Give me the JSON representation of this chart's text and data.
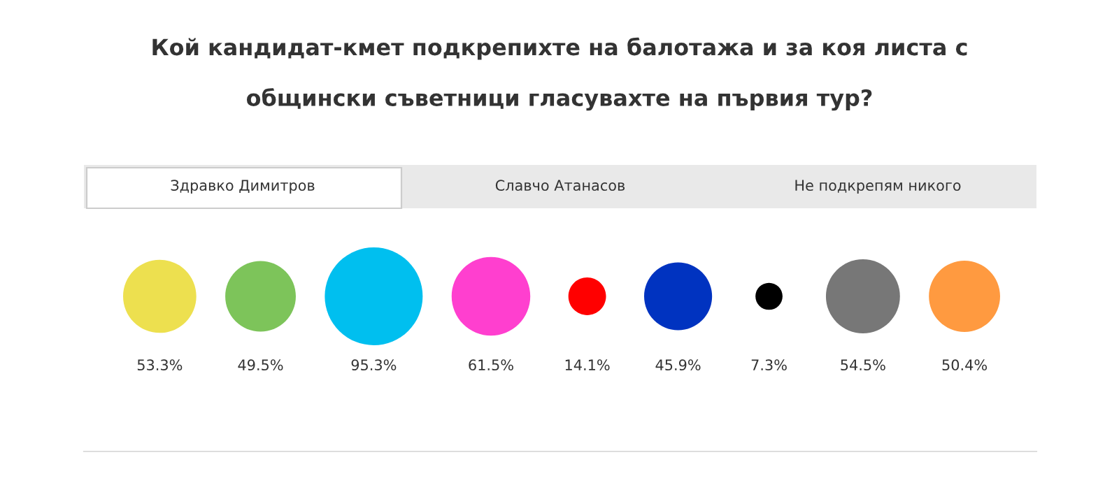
{
  "chart_data": {
    "type": "other",
    "title": "Кой кандидат-кмет подкрепихте на балотажа и за коя листа с\nобщински съветници гласувахте на първия тур?",
    "annotations": [
      "Здравко Димитров",
      "Славчо Атанасов",
      "Не подкрепям никого"
    ],
    "categories": [
      null,
      null,
      null,
      null,
      null,
      null,
      null,
      null,
      null
    ],
    "values": [
      53.3,
      49.5,
      95.3,
      61.5,
      14.1,
      45.9,
      7.3,
      54.5,
      50.4
    ],
    "value_labels": [
      "53.3%",
      "49.5%",
      "95.3%",
      "61.5%",
      "14.1%",
      "45.9%",
      "7.3%",
      "54.5%",
      "50.4%"
    ],
    "colors": [
      "#ede04f",
      "#7dc45a",
      "#00bfef",
      "#ff3fcf",
      "#ff0000",
      "#0033c0",
      "#000000",
      "#777777",
      "#ff9a40"
    ]
  }
}
